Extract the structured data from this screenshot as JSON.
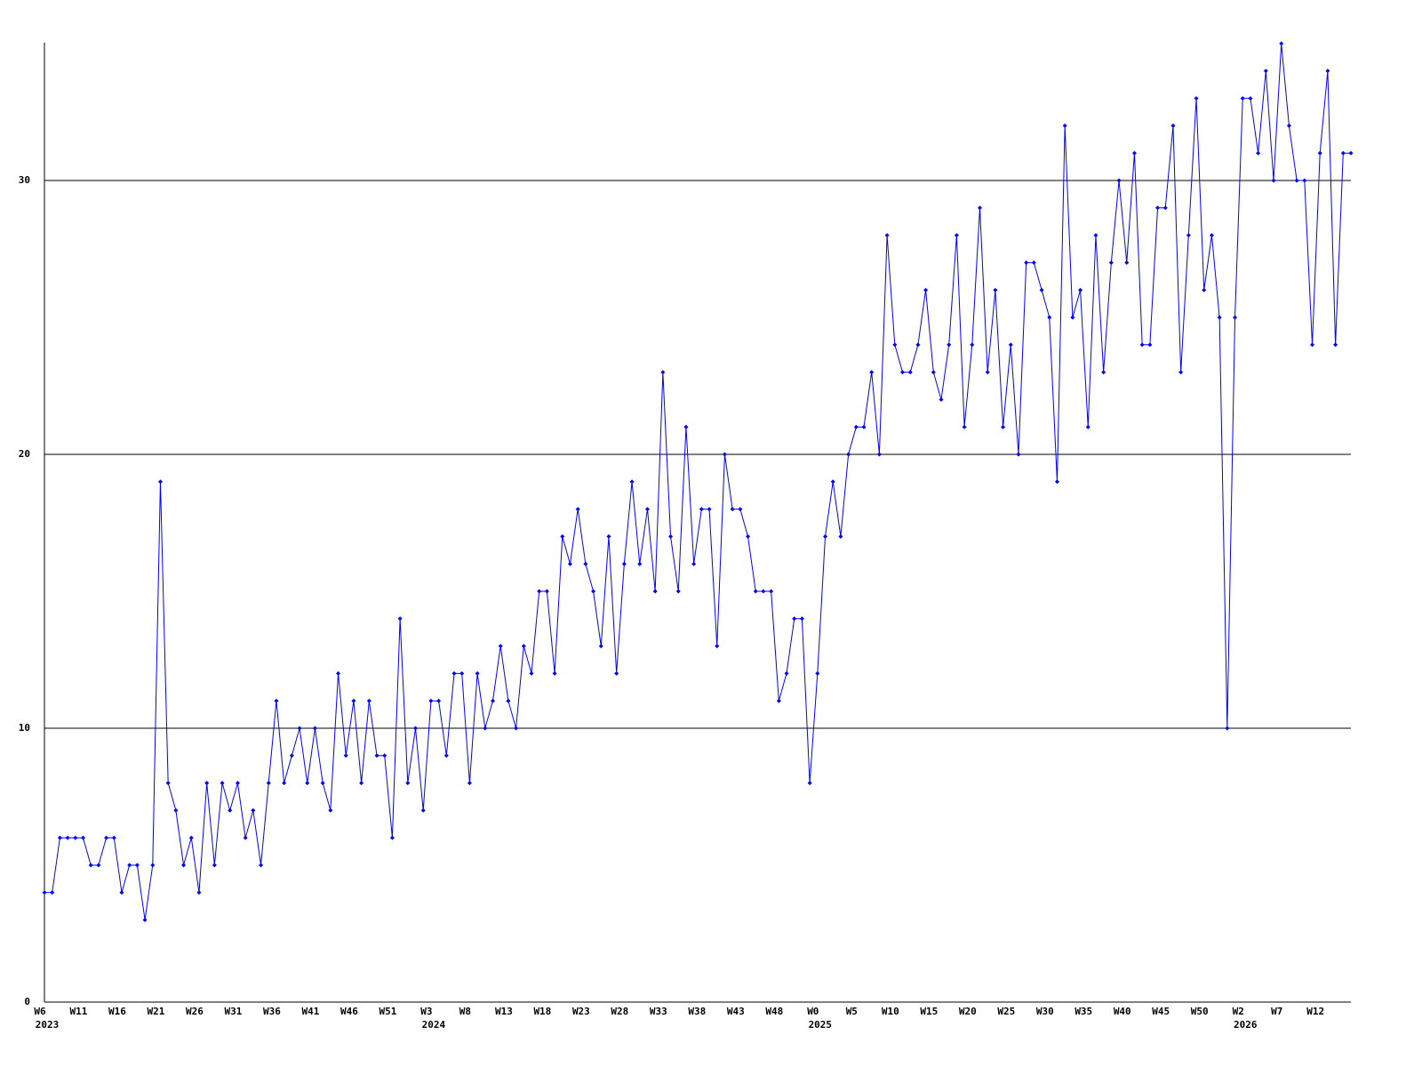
{
  "chart_data": {
    "type": "line",
    "color": "#0000ff",
    "grid": true,
    "ylim": [
      0,
      35
    ],
    "yticks": [
      0,
      10,
      20,
      30
    ],
    "categories": [
      "W6",
      null,
      null,
      null,
      null,
      "W11",
      null,
      null,
      null,
      null,
      "W16",
      null,
      null,
      null,
      null,
      "W21",
      null,
      null,
      null,
      null,
      "W26",
      null,
      null,
      null,
      null,
      "W31",
      null,
      null,
      null,
      null,
      "W36",
      null,
      null,
      null,
      null,
      "W41",
      null,
      null,
      null,
      null,
      "W46",
      null,
      null,
      null,
      null,
      "W51",
      null,
      null,
      null,
      null,
      "W3",
      null,
      null,
      null,
      null,
      "W8",
      null,
      null,
      null,
      null,
      "W13",
      null,
      null,
      null,
      null,
      "W18",
      null,
      null,
      null,
      null,
      "W23",
      null,
      null,
      null,
      null,
      "W28",
      null,
      null,
      null,
      null,
      "W33",
      null,
      null,
      null,
      null,
      "W38",
      null,
      null,
      null,
      null,
      "W43",
      null,
      null,
      null,
      null,
      "W48",
      null,
      null,
      null,
      null,
      "W0",
      null,
      null,
      null,
      null,
      "W5",
      null,
      null,
      null,
      null,
      "W10",
      null,
      null,
      null,
      null,
      "W15",
      null,
      null,
      null,
      null,
      "W20",
      null,
      null,
      null,
      null,
      "W25",
      null,
      null,
      null,
      null,
      "W30",
      null,
      null,
      null,
      null,
      "W35",
      null,
      null,
      null,
      null,
      "W40",
      null,
      null,
      null,
      null,
      "W45",
      null,
      null,
      null,
      null,
      "W50",
      null,
      null,
      null,
      null,
      "W2",
      null,
      null,
      null,
      null,
      "W7",
      null,
      null,
      null,
      null,
      "W12",
      null,
      null,
      null,
      null
    ],
    "category_years": [
      "2023",
      null,
      null,
      null,
      null,
      null,
      null,
      null,
      null,
      null,
      null,
      null,
      null,
      null,
      null,
      null,
      null,
      null,
      null,
      null,
      null,
      null,
      null,
      null,
      null,
      null,
      null,
      null,
      null,
      null,
      null,
      null,
      null,
      null,
      null,
      null,
      null,
      null,
      null,
      null,
      null,
      null,
      null,
      null,
      null,
      null,
      null,
      null,
      null,
      null,
      "2024",
      null,
      null,
      null,
      null,
      null,
      null,
      null,
      null,
      null,
      null,
      null,
      null,
      null,
      null,
      null,
      null,
      null,
      null,
      null,
      null,
      null,
      null,
      null,
      null,
      null,
      null,
      null,
      null,
      null,
      null,
      null,
      null,
      null,
      null,
      null,
      null,
      null,
      null,
      null,
      null,
      null,
      null,
      null,
      null,
      null,
      null,
      null,
      null,
      null,
      "2025",
      null,
      null,
      null,
      null,
      null,
      null,
      null,
      null,
      null,
      null,
      null,
      null,
      null,
      null,
      null,
      null,
      null,
      null,
      null,
      null,
      null,
      null,
      null,
      null,
      null,
      null,
      null,
      null,
      null,
      null,
      null,
      null,
      null,
      null,
      null,
      null,
      null,
      null,
      null,
      null,
      null,
      null,
      null,
      null,
      null,
      null,
      null,
      null,
      null,
      null,
      null,
      null,
      null,
      null,
      "2026",
      null,
      null,
      null,
      null,
      null,
      null,
      null,
      null,
      null,
      null,
      null,
      null,
      null,
      null
    ],
    "values": [
      4,
      4,
      6,
      6,
      6,
      6,
      5,
      5,
      6,
      6,
      4,
      5,
      5,
      3,
      5,
      19,
      8,
      7,
      5,
      6,
      4,
      8,
      5,
      8,
      7,
      8,
      6,
      7,
      5,
      8,
      11,
      8,
      9,
      10,
      8,
      10,
      8,
      7,
      12,
      9,
      11,
      8,
      11,
      9,
      9,
      6,
      14,
      8,
      10,
      7,
      11,
      11,
      9,
      12,
      12,
      8,
      12,
      10,
      11,
      13,
      11,
      10,
      13,
      12,
      15,
      15,
      12,
      17,
      16,
      18,
      16,
      15,
      13,
      17,
      12,
      16,
      19,
      16,
      18,
      15,
      23,
      17,
      15,
      21,
      16,
      18,
      18,
      13,
      20,
      18,
      18,
      17,
      15,
      15,
      15,
      11,
      12,
      14,
      14,
      8,
      12,
      17,
      19,
      17,
      20,
      21,
      21,
      23,
      20,
      28,
      24,
      23,
      23,
      24,
      26,
      23,
      22,
      24,
      28,
      21,
      24,
      29,
      23,
      26,
      21,
      24,
      20,
      27,
      27,
      26,
      25,
      19,
      32,
      25,
      26,
      21,
      28,
      23,
      27,
      30,
      27,
      31,
      24,
      24,
      29,
      29,
      32,
      23,
      28,
      33,
      26,
      28,
      25,
      10,
      25,
      33,
      33,
      31,
      34,
      30,
      35,
      32,
      30,
      30,
      24,
      31,
      34,
      24,
      31,
      31
    ]
  }
}
